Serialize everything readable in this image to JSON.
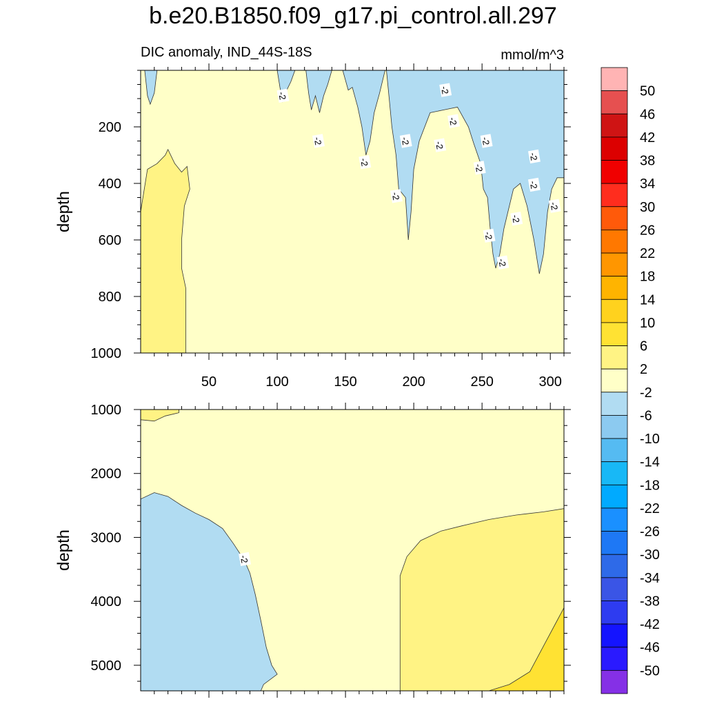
{
  "title": "b.e20.B1850.f09_g17.pi_control.all.297",
  "subtitle_left": "DIC anomaly, IND_44S-18S",
  "subtitle_right": "mmol/m^3",
  "chart_data": [
    {
      "type": "contour",
      "panel": "upper",
      "xlabel": "",
      "ylabel": "depth",
      "xlim": [
        0,
        310
      ],
      "ylim": [
        1000,
        0
      ],
      "x_ticks": [
        50,
        100,
        150,
        200,
        250,
        300
      ],
      "y_ticks": [
        200,
        400,
        600,
        800,
        1000
      ],
      "contour_label": "-2",
      "regions": [
        {
          "level": "2 to 6",
          "color": "#fff384",
          "outline": [
            [
              0,
              500
            ],
            [
              5,
              350
            ],
            [
              12,
              330
            ],
            [
              18,
              300
            ],
            [
              20,
              280
            ],
            [
              25,
              330
            ],
            [
              30,
              360
            ],
            [
              34,
              340
            ],
            [
              36,
              420
            ],
            [
              32,
              480
            ],
            [
              30,
              600
            ],
            [
              30,
              700
            ],
            [
              33,
              770
            ],
            [
              33,
              1000
            ],
            [
              0,
              1000
            ]
          ]
        },
        {
          "level": "-6 to -2",
          "color": "#b1dcf2",
          "outline": [
            [
              100,
              0
            ],
            [
              102,
              60
            ],
            [
              104,
              110
            ],
            [
              107,
              70
            ],
            [
              110,
              40
            ],
            [
              113,
              0
            ]
          ]
        },
        {
          "level": "-6 to -2",
          "color": "#b1dcf2",
          "outline": [
            [
              121,
              0
            ],
            [
              123,
              80
            ],
            [
              125,
              140
            ],
            [
              128,
              90
            ],
            [
              131,
              150
            ],
            [
              134,
              90
            ],
            [
              137,
              50
            ],
            [
              140,
              0
            ]
          ]
        },
        {
          "level": "-6 to -2",
          "color": "#b1dcf2",
          "outline": [
            [
              148,
              0
            ],
            [
              152,
              70
            ],
            [
              155,
              60
            ],
            [
              159,
              130
            ],
            [
              162,
              200
            ],
            [
              165,
              300
            ],
            [
              168,
              250
            ],
            [
              171,
              150
            ],
            [
              175,
              80
            ],
            [
              179,
              0
            ]
          ]
        },
        {
          "level": "-6 to -2",
          "color": "#b1dcf2",
          "outline": [
            [
              180,
              0
            ],
            [
              182,
              100
            ],
            [
              184,
              200
            ],
            [
              187,
              300
            ],
            [
              189,
              420
            ],
            [
              194,
              450
            ],
            [
              196,
              600
            ],
            [
              198,
              500
            ],
            [
              200,
              350
            ],
            [
              204,
              250
            ],
            [
              212,
              150
            ],
            [
              222,
              140
            ],
            [
              232,
              130
            ],
            [
              240,
              200
            ],
            [
              244,
              260
            ],
            [
              249,
              330
            ],
            [
              251,
              420
            ],
            [
              254,
              450
            ],
            [
              256,
              560
            ],
            [
              258,
              650
            ],
            [
              260,
              700
            ],
            [
              263,
              650
            ],
            [
              266,
              560
            ],
            [
              269,
              500
            ],
            [
              273,
              420
            ],
            [
              278,
              400
            ],
            [
              283,
              480
            ],
            [
              288,
              600
            ],
            [
              292,
              720
            ],
            [
              295,
              650
            ],
            [
              298,
              500
            ],
            [
              301,
              420
            ],
            [
              305,
              380
            ],
            [
              310,
              380
            ],
            [
              310,
              0
            ]
          ]
        },
        {
          "level": "-6 to -2",
          "color": "#b1dcf2",
          "outline": [
            [
              3,
              0
            ],
            [
              5,
              90
            ],
            [
              7,
              120
            ],
            [
              10,
              80
            ],
            [
              12,
              0
            ]
          ]
        }
      ],
      "label_positions": [
        [
          104,
          90
        ],
        [
          130,
          250
        ],
        [
          164,
          325
        ],
        [
          194,
          250
        ],
        [
          187,
          445
        ],
        [
          219,
          265
        ],
        [
          223,
          70
        ],
        [
          229,
          180
        ],
        [
          248,
          345
        ],
        [
          253,
          250
        ],
        [
          255,
          585
        ],
        [
          265,
          680
        ],
        [
          275,
          525
        ],
        [
          288,
          305
        ],
        [
          288,
          405
        ],
        [
          303,
          480
        ]
      ]
    },
    {
      "type": "contour",
      "panel": "lower",
      "xlabel": "",
      "ylabel": "depth",
      "xlim": [
        0,
        310
      ],
      "ylim": [
        5400,
        1000
      ],
      "x_ticks": [
        50,
        100,
        150,
        200,
        250,
        300
      ],
      "y_ticks": [
        1000,
        2000,
        3000,
        4000,
        5000
      ],
      "contour_label": "-2",
      "regions": [
        {
          "level": "-6 to -2",
          "color": "#b1dcf2",
          "outline": [
            [
              0,
              2400
            ],
            [
              10,
              2300
            ],
            [
              20,
              2360
            ],
            [
              30,
              2500
            ],
            [
              40,
              2620
            ],
            [
              50,
              2720
            ],
            [
              60,
              2860
            ],
            [
              68,
              3100
            ],
            [
              76,
              3360
            ],
            [
              80,
              3560
            ],
            [
              84,
              3900
            ],
            [
              88,
              4300
            ],
            [
              92,
              4720
            ],
            [
              96,
              5000
            ],
            [
              100,
              5140
            ],
            [
              90,
              5300
            ],
            [
              88,
              5400
            ],
            [
              0,
              5400
            ]
          ]
        },
        {
          "level": "2 to 6",
          "color": "#fff384",
          "outline": [
            [
              190,
              5400
            ],
            [
              190,
              3600
            ],
            [
              195,
              3300
            ],
            [
              205,
              3050
            ],
            [
              220,
              2900
            ],
            [
              235,
              2820
            ],
            [
              255,
              2720
            ],
            [
              275,
              2650
            ],
            [
              295,
              2600
            ],
            [
              310,
              2550
            ],
            [
              310,
              5400
            ]
          ]
        },
        {
          "level": "6 to 10",
          "color": "#ffe233",
          "outline": [
            [
              255,
              5400
            ],
            [
              270,
              5300
            ],
            [
              285,
              5100
            ],
            [
              295,
              4700
            ],
            [
              305,
              4300
            ],
            [
              310,
              4100
            ],
            [
              310,
              5400
            ]
          ]
        },
        {
          "level": "2 to 6",
          "color": "#fff384",
          "outline": [
            [
              0,
              1000
            ],
            [
              0,
              1160
            ],
            [
              10,
              1180
            ],
            [
              18,
              1100
            ],
            [
              28,
              1050
            ],
            [
              28,
              1000
            ]
          ]
        }
      ],
      "label_positions": [
        [
          76,
          3340
        ]
      ]
    }
  ],
  "colorbar": {
    "levels": [
      "50",
      "46",
      "42",
      "38",
      "34",
      "30",
      "26",
      "22",
      "18",
      "14",
      "10",
      "6",
      "2",
      "-2",
      "-6",
      "-10",
      "-14",
      "-18",
      "-22",
      "-26",
      "-30",
      "-34",
      "-38",
      "-42",
      "-46",
      "-50"
    ],
    "colors": [
      "#ffb4b4",
      "#e65050",
      "#cf1414",
      "#dc0000",
      "#f00000",
      "#ff2d1e",
      "#ff5a0a",
      "#ff7800",
      "#ff9600",
      "#ffb400",
      "#ffd21e",
      "#ffe233",
      "#fff384",
      "#ffffc8",
      "#b1dcf2",
      "#8ccaf0",
      "#55bbf2",
      "#18b8f6",
      "#00aaff",
      "#1a90ff",
      "#1e78f5",
      "#2e6ae8",
      "#3a55e6",
      "#2e3cf0",
      "#1414ff",
      "#2a1aff",
      "#8530e6"
    ]
  }
}
